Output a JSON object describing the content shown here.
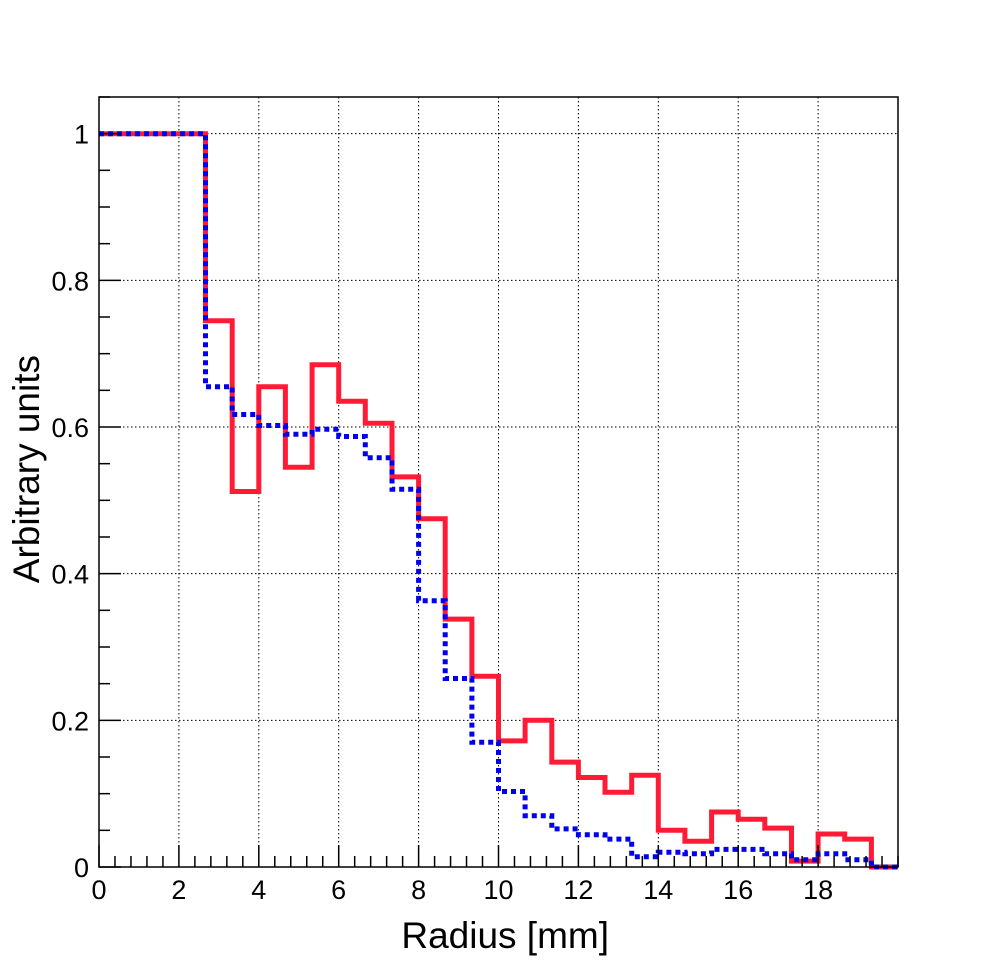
{
  "chart_data": {
    "type": "histogram-step",
    "title": "",
    "xlabel": "Radius [mm]",
    "ylabel": "Arbitrary units",
    "xlim": [
      0,
      20
    ],
    "ylim": [
      0,
      1.05
    ],
    "grid": true,
    "x_ticks": [
      0,
      2,
      4,
      6,
      8,
      10,
      12,
      14,
      16,
      18
    ],
    "x_tick_labels": [
      "0",
      "2",
      "4",
      "6",
      "8",
      "10",
      "12",
      "14",
      "16",
      "18"
    ],
    "y_ticks": [
      0,
      0.2,
      0.4,
      0.6,
      0.8,
      1
    ],
    "y_tick_labels": [
      "0",
      "0.2",
      "0.4",
      "0.6",
      "0.8",
      "1"
    ],
    "bin_edges": [
      0,
      0.667,
      1.333,
      2.0,
      2.667,
      3.333,
      4.0,
      4.667,
      5.333,
      6.0,
      6.667,
      7.333,
      8.0,
      8.667,
      9.333,
      10.0,
      10.667,
      11.333,
      12.0,
      12.667,
      13.333,
      14.0,
      14.667,
      15.333,
      16.0,
      16.667,
      17.333,
      18.0,
      18.667,
      19.333,
      20.0
    ],
    "series": [
      {
        "color": "#ff1a35",
        "style": "solid",
        "values": [
          1.0,
          1.0,
          1.0,
          1.0,
          0.745,
          0.512,
          0.655,
          0.545,
          0.685,
          0.635,
          0.605,
          0.532,
          0.475,
          0.338,
          0.26,
          0.172,
          0.2,
          0.143,
          0.122,
          0.102,
          0.125,
          0.05,
          0.035,
          0.075,
          0.065,
          0.053,
          0.008,
          0.045,
          0.038,
          0.0
        ]
      },
      {
        "color": "#0000ee",
        "style": "dotted",
        "values": [
          1.0,
          1.0,
          1.0,
          1.0,
          0.655,
          0.617,
          0.602,
          0.59,
          0.597,
          0.587,
          0.558,
          0.515,
          0.363,
          0.257,
          0.17,
          0.103,
          0.07,
          0.052,
          0.044,
          0.038,
          0.014,
          0.02,
          0.018,
          0.024,
          0.024,
          0.018,
          0.01,
          0.018,
          0.01,
          0.0
        ]
      }
    ]
  }
}
